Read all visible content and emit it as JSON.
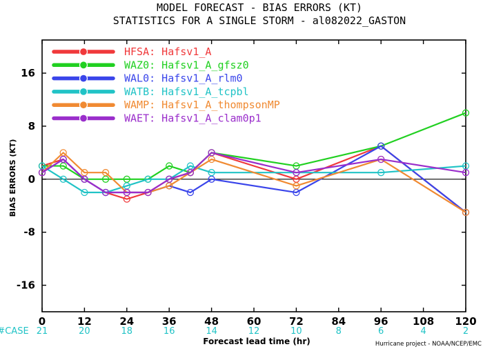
{
  "title": {
    "line1": "MODEL FORECAST - BIAS ERRORS (KT)",
    "line2": "STATISTICS FOR A SINGLE STORM - al082022_GASTON"
  },
  "credit": "Hurricane project - NOAA/NCEP/EMC",
  "case_label": "#CASE",
  "chart_data": {
    "type": "line",
    "xlabel": "Forecast lead time (hr)",
    "ylabel": "BIAS ERRORS (KT)",
    "xlim": [
      0,
      120
    ],
    "ylim": [
      -20,
      21
    ],
    "x_ticks": [
      0,
      12,
      24,
      36,
      48,
      60,
      72,
      84,
      96,
      108,
      120
    ],
    "y_ticks": [
      16,
      8,
      0,
      -8,
      -16
    ],
    "zero_line": true,
    "legend_position": "top-left",
    "cases": {
      "x": [
        0,
        12,
        24,
        36,
        48,
        60,
        72,
        84,
        96,
        108,
        120
      ],
      "counts": [
        21,
        20,
        18,
        16,
        14,
        12,
        10,
        8,
        6,
        4,
        2
      ]
    },
    "x": [
      0,
      6,
      12,
      18,
      24,
      30,
      36,
      42,
      48,
      72,
      96,
      120
    ],
    "series": [
      {
        "name": "HFSA: Hafsv1_A",
        "color": "#f0393b",
        "values": [
          2,
          3,
          0,
          -2,
          -3,
          -2,
          0,
          1,
          4,
          0,
          5,
          -5
        ]
      },
      {
        "name": "WAZ0: Hafsv1_A_gfsz0",
        "color": "#21d021",
        "values": [
          2,
          2,
          0,
          0,
          0,
          0,
          2,
          1,
          4,
          2,
          5,
          10
        ]
      },
      {
        "name": "WAL0: Hafsv1_A_rlm0",
        "color": "#3a45ea",
        "values": [
          1,
          3,
          0,
          -2,
          -2,
          -2,
          -1,
          -2,
          0,
          -2,
          5,
          -5
        ]
      },
      {
        "name": "WATB: Hafsv1_A_tcpbl",
        "color": "#21c3c6",
        "values": [
          2,
          0,
          -2,
          -2,
          -1,
          0,
          0,
          2,
          1,
          1,
          1,
          2
        ]
      },
      {
        "name": "WAMP: Hafsv1_A_thompsonMP",
        "color": "#f08a32",
        "values": [
          1,
          4,
          1,
          1,
          -2,
          -2,
          -1,
          1,
          3,
          -1,
          3,
          -5
        ]
      },
      {
        "name": "WAET: Hafsv1_A_clam0p1",
        "color": "#9a2ecb",
        "values": [
          1,
          3,
          0,
          -2,
          -2,
          -2,
          0,
          1,
          4,
          1,
          3,
          1
        ]
      }
    ]
  }
}
